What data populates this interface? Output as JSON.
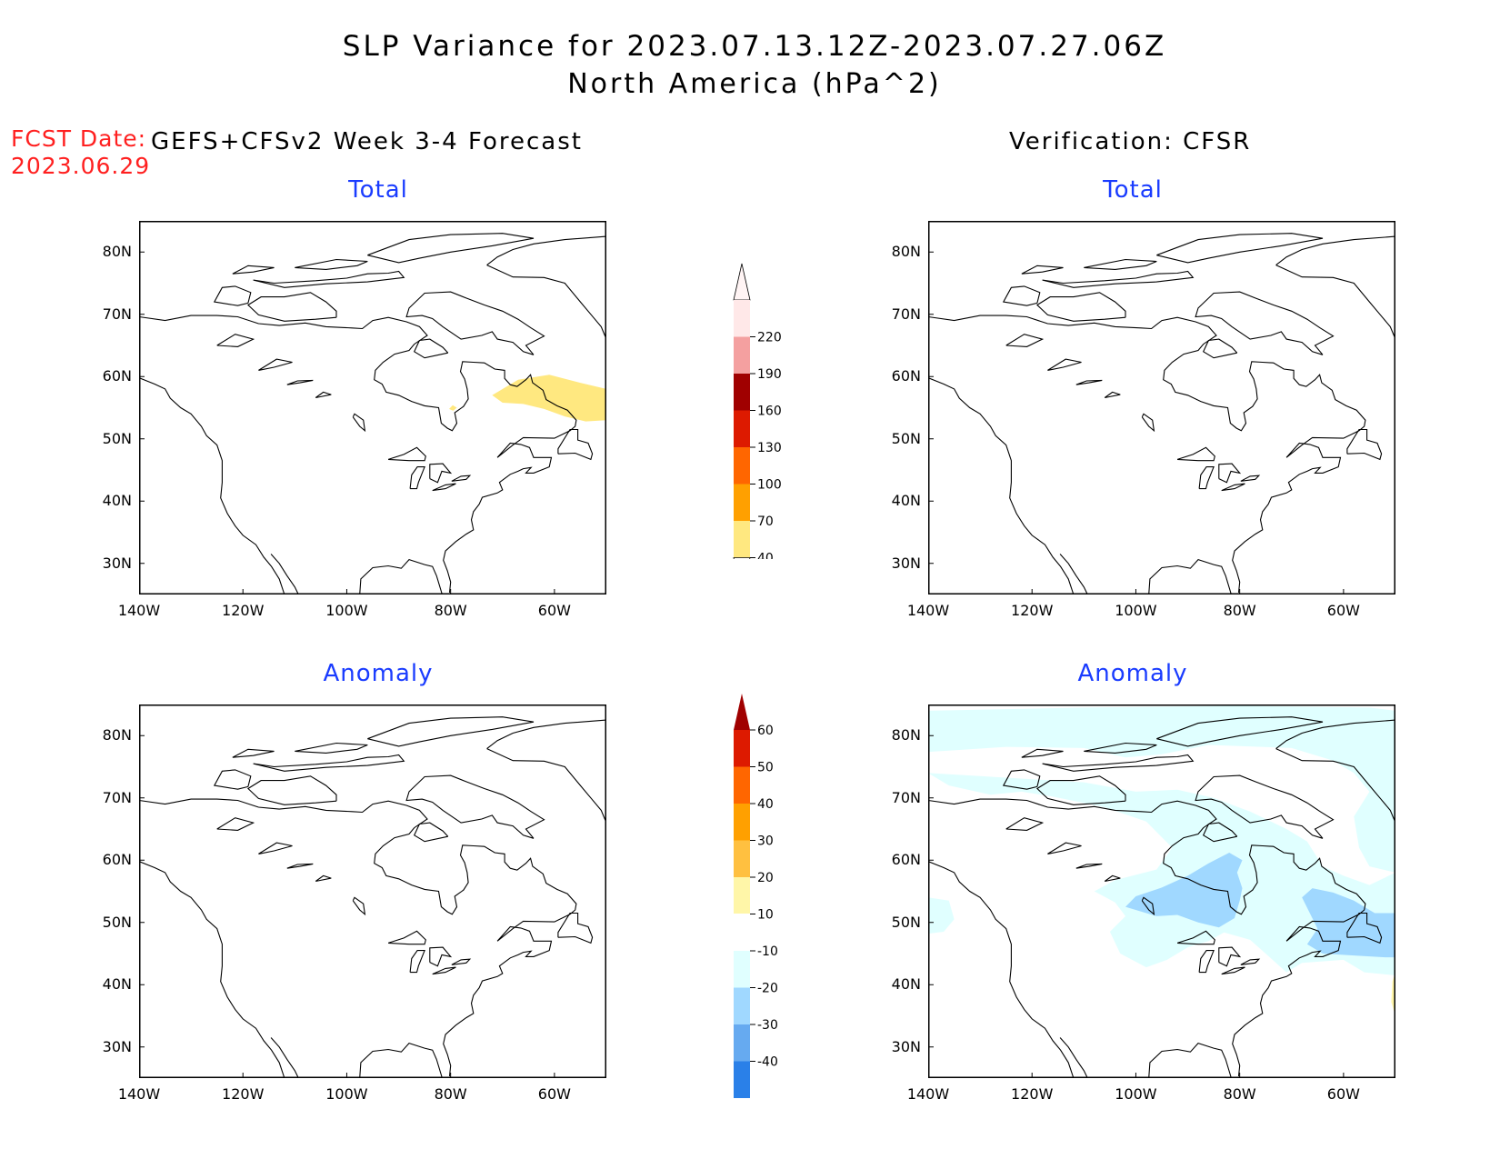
{
  "title_line1": "SLP Variance for 2023.07.13.12Z-2023.07.27.06Z",
  "title_line2": "North America (hPa^2)",
  "fcst_label": "FCST Date:",
  "fcst_date": "2023.06.29",
  "left_heading": "GEFS+CFSv2 Week 3-4 Forecast",
  "right_heading": "Verification: CFSR",
  "panels": [
    {
      "id": "fcst-total",
      "subtitle": "Total"
    },
    {
      "id": "verif-total",
      "subtitle": "Total"
    },
    {
      "id": "fcst-anomaly",
      "subtitle": "Anomaly"
    },
    {
      "id": "verif-anomaly",
      "subtitle": "Anomaly"
    }
  ],
  "map_axes": {
    "lat_labels": [
      "80N",
      "70N",
      "60N",
      "50N",
      "40N",
      "30N"
    ],
    "lat_values": [
      80,
      70,
      60,
      50,
      40,
      30
    ],
    "lon_labels": [
      "140W",
      "120W",
      "100W",
      "80W",
      "60W"
    ],
    "lon_values": [
      -140,
      -120,
      -100,
      -80,
      -60
    ],
    "lat_range": [
      25,
      85
    ],
    "lon_range": [
      -140,
      -50
    ]
  },
  "total_colorbar": {
    "labels": [
      "220",
      "190",
      "160",
      "130",
      "100",
      "70",
      "40"
    ],
    "colors": [
      "#ffe8e8",
      "#f4a0a0",
      "#a00000",
      "#dd1a00",
      "#ff6600",
      "#ffa000",
      "#ffe880"
    ]
  },
  "anomaly_colorbar": {
    "labels": [
      "60",
      "50",
      "40",
      "30",
      "20",
      "10",
      "-10",
      "-20",
      "-30",
      "-40"
    ],
    "colors": [
      "#a00000",
      "#dd1a00",
      "#ff6600",
      "#ffa000",
      "#ffc040",
      "#fff6a8",
      "#ffffff",
      "#e0ffff",
      "#a0d8ff",
      "#66aaf0",
      "#2a80e8",
      "#1060d0"
    ]
  },
  "colors": {
    "title_red": "#ff2020",
    "subtitle_blue": "#1a3cff",
    "fcst_total_shade": "#ffe880",
    "anom_light_blue": "#e0ffff",
    "anom_mid_blue": "#a0d8ff",
    "anom_pos_yellow": "#fff6a8"
  }
}
